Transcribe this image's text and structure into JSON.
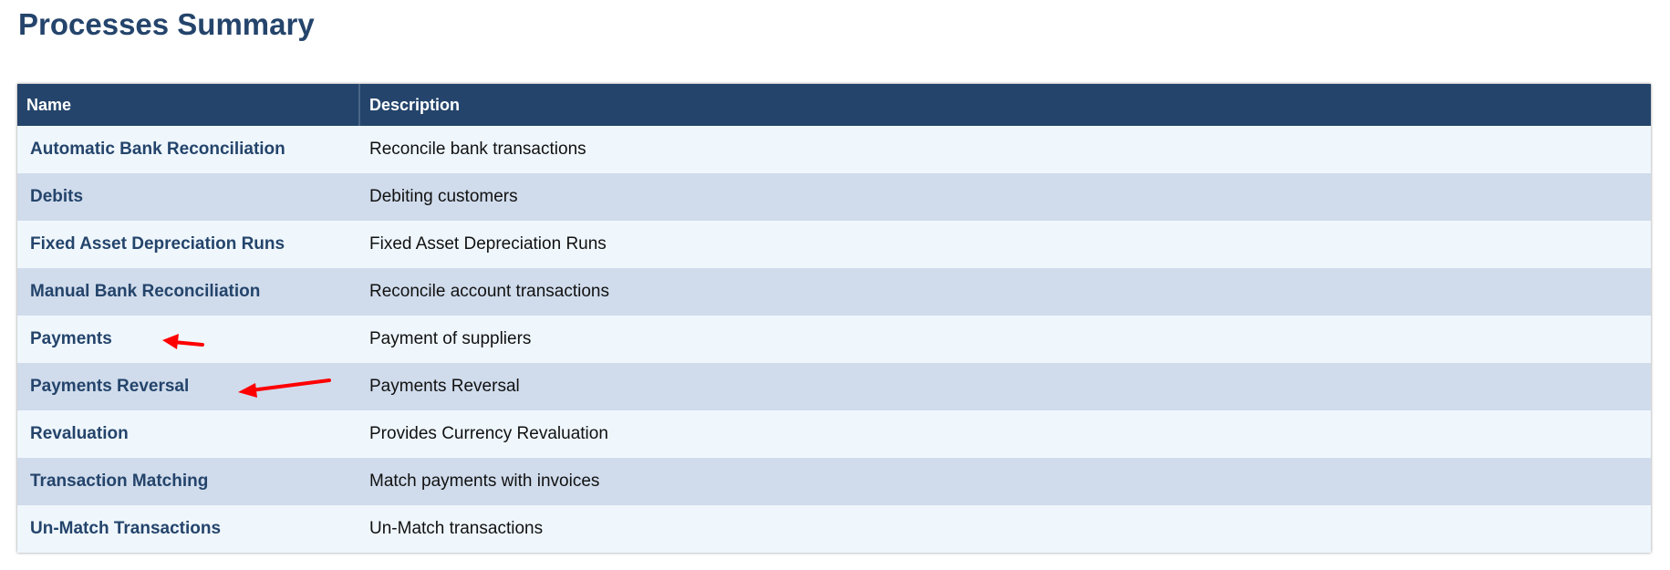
{
  "page": {
    "title": "Processes Summary"
  },
  "table": {
    "headers": {
      "name": "Name",
      "description": "Description"
    },
    "rows": [
      {
        "name": "Automatic Bank Reconciliation",
        "description": "Reconcile bank transactions"
      },
      {
        "name": "Debits",
        "description": "Debiting customers"
      },
      {
        "name": "Fixed Asset Depreciation Runs",
        "description": "Fixed Asset Depreciation Runs"
      },
      {
        "name": "Manual Bank Reconciliation",
        "description": "Reconcile account transactions"
      },
      {
        "name": "Payments",
        "description": "Payment of suppliers"
      },
      {
        "name": "Payments Reversal",
        "description": "Payments Reversal"
      },
      {
        "name": "Revaluation",
        "description": "Provides Currency Revaluation"
      },
      {
        "name": "Transaction Matching",
        "description": "Match payments with invoices"
      },
      {
        "name": "Un-Match Transactions",
        "description": "Un-Match transactions"
      }
    ]
  },
  "colors": {
    "header_bg": "#24446b",
    "row_odd": "#eff7fd",
    "row_even": "#d0dcec",
    "annotation": "#ff0000"
  }
}
